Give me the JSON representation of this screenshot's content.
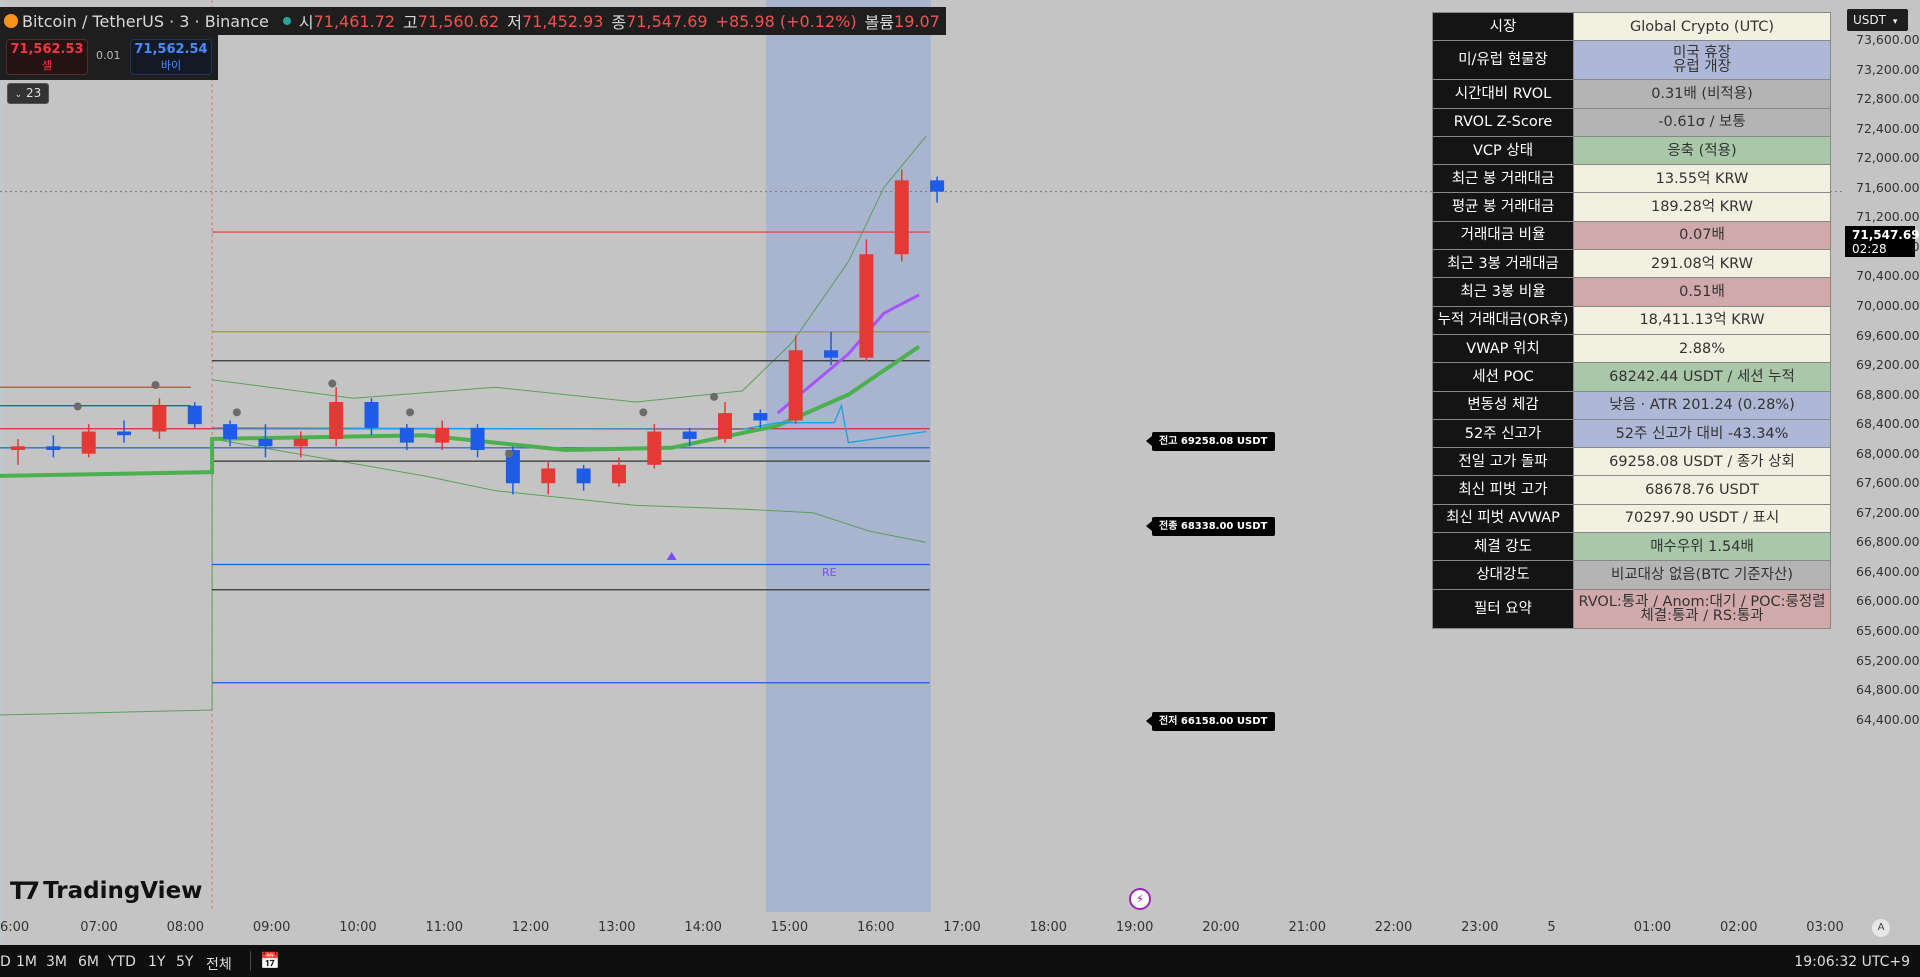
{
  "header": {
    "symbol": "Bitcoin / TetherUS · 3 · Binance",
    "open_label": "시",
    "open": "71,461.72",
    "high_label": "고",
    "high": "71,560.62",
    "low_label": "저",
    "low": "71,452.93",
    "close_label": "종",
    "close": "71,547.69",
    "change": "+85.98 (+0.12%)",
    "volume_label": "볼륨",
    "volume": "19.07"
  },
  "trade": {
    "sell_price": "71,562.53",
    "sell_label": "셀",
    "spread": "0.01",
    "buy_price": "71,562.54",
    "buy_label": "바이"
  },
  "indicator_count": "23",
  "currency": "USDT",
  "current_price": "71,547.69",
  "countdown": "02:28",
  "price_axis": [
    "73,600.00",
    "73,200.00",
    "72,800.00",
    "72,400.00",
    "72,000.00",
    "71,600.00",
    "71,200.00",
    "70,800.00",
    "70,400.00",
    "70,000.00",
    "69,600.00",
    "69,200.00",
    "68,800.00",
    "68,400.00",
    "68,000.00",
    "67,600.00",
    "67,200.00",
    "66,800.00",
    "66,400.00",
    "66,000.00",
    "65,600.00",
    "65,200.00",
    "64,800.00",
    "64,400.00"
  ],
  "time_axis": [
    "6:00",
    "07:00",
    "08:00",
    "09:00",
    "10:00",
    "11:00",
    "12:00",
    "13:00",
    "14:00",
    "15:00",
    "16:00",
    "17:00",
    "18:00",
    "19:00",
    "20:00",
    "21:00",
    "22:00",
    "23:00",
    "5",
    "01:00",
    "02:00",
    "03:00"
  ],
  "line_tags": {
    "prev_high": "전고 69258.08 USDT",
    "prev_close": "전종 68338.00 USDT",
    "prev_low": "전저 66158.00 USDT"
  },
  "re_label": "RE",
  "logo_text": "TradingView",
  "auto_label": "A",
  "bottom": {
    "ranges": [
      "D",
      "1M",
      "3M",
      "6M",
      "YTD",
      "1Y",
      "5Y",
      "전체"
    ],
    "clock": "19:06:32 UTC+9"
  },
  "info_table": [
    {
      "key": "시장",
      "value": "Global Crypto (UTC)",
      "color": "#f2f0e0"
    },
    {
      "key": "미/유럽 현물장",
      "value": "미국 휴장\n유럽 개장",
      "color": "#aeb8d6"
    },
    {
      "key": "시간대비 RVOL",
      "value": "0.31배 (비적용)",
      "color": "#b4b4b4"
    },
    {
      "key": "RVOL Z-Score",
      "value": "-0.61σ / 보통",
      "color": "#b4b4b4"
    },
    {
      "key": "VCP 상태",
      "value": "응축 (적용)",
      "color": "#a9c7a9"
    },
    {
      "key": "최근 봉 거래대금",
      "value": "13.55억 KRW",
      "color": "#f2f0e0"
    },
    {
      "key": "평균 봉 거래대금",
      "value": "189.28억 KRW",
      "color": "#f2f0e0"
    },
    {
      "key": "거래대금 비율",
      "value": "0.07배",
      "color": "#d2a9aa"
    },
    {
      "key": "최근 3봉 거래대금",
      "value": "291.08억 KRW",
      "color": "#f2f0e0"
    },
    {
      "key": "최근 3봉 비율",
      "value": "0.51배",
      "color": "#d2a9aa"
    },
    {
      "key": "누적 거래대금(OR후)",
      "value": "18,411.13억 KRW",
      "color": "#f2f0e0"
    },
    {
      "key": "VWAP 위치",
      "value": "2.88%",
      "color": "#f2f0e0"
    },
    {
      "key": "세션 POC",
      "value": "68242.44 USDT / 세션 누적",
      "color": "#a9c7a9"
    },
    {
      "key": "변동성 체감",
      "value": "낮음 · ATR 201.24 (0.28%)",
      "color": "#aeb8d6"
    },
    {
      "key": "52주 신고가",
      "value": "52주 신고가 대비 -43.34%",
      "color": "#aeb8d6"
    },
    {
      "key": "전일 고가 돌파",
      "value": "69258.08 USDT / 종가 상회",
      "color": "#f2f0e0"
    },
    {
      "key": "최신 피벗 고가",
      "value": "68678.76 USDT",
      "color": "#f2f0e0"
    },
    {
      "key": "최신 피벗 AVWAP",
      "value": "70297.90 USDT / 표시",
      "color": "#f2f0e0"
    },
    {
      "key": "체결 강도",
      "value": "매수우위 1.54배",
      "color": "#a9c7a9"
    },
    {
      "key": "상대강도",
      "value": "비교대상 없음(BTC 기준자산)",
      "color": "#b4b4b4"
    },
    {
      "key": "필터 요약",
      "value": "RVOL:통과 / Anom:대기 / POC:룽정렬\n체결:통과 / RS:통과",
      "color": "#d2a9aa"
    }
  ],
  "chart_data": {
    "type": "candlestick",
    "symbol": "BTCUSDT",
    "timeframe": "3",
    "ylim": [
      64200,
      73800
    ],
    "x_range": [
      "06:00",
      "03:00"
    ],
    "candles": [
      {
        "t": "06:00",
        "o": 68050,
        "h": 68200,
        "l": 67850,
        "c": 68100
      },
      {
        "t": "06:30",
        "o": 68100,
        "h": 68250,
        "l": 67950,
        "c": 68050
      },
      {
        "t": "07:00",
        "o": 68000,
        "h": 68400,
        "l": 67950,
        "c": 68300
      },
      {
        "t": "07:30",
        "o": 68300,
        "h": 68450,
        "l": 68150,
        "c": 68250
      },
      {
        "t": "08:00",
        "o": 68300,
        "h": 68750,
        "l": 68200,
        "c": 68650
      },
      {
        "t": "08:30",
        "o": 68650,
        "h": 68700,
        "l": 68350,
        "c": 68400
      },
      {
        "t": "09:00",
        "o": 68400,
        "h": 68450,
        "l": 68100,
        "c": 68200
      },
      {
        "t": "09:30",
        "o": 68200,
        "h": 68400,
        "l": 67950,
        "c": 68100
      },
      {
        "t": "10:00",
        "o": 68100,
        "h": 68300,
        "l": 67950,
        "c": 68200
      },
      {
        "t": "10:30",
        "o": 68200,
        "h": 68900,
        "l": 68100,
        "c": 68700
      },
      {
        "t": "11:00",
        "o": 68700,
        "h": 68750,
        "l": 68250,
        "c": 68350
      },
      {
        "t": "11:30",
        "o": 68350,
        "h": 68400,
        "l": 68050,
        "c": 68150
      },
      {
        "t": "12:00",
        "o": 68150,
        "h": 68450,
        "l": 68050,
        "c": 68350
      },
      {
        "t": "12:30",
        "o": 68350,
        "h": 68400,
        "l": 67950,
        "c": 68050
      },
      {
        "t": "13:00",
        "o": 68050,
        "h": 68100,
        "l": 67450,
        "c": 67600
      },
      {
        "t": "13:30",
        "o": 67600,
        "h": 67900,
        "l": 67450,
        "c": 67800
      },
      {
        "t": "14:00",
        "o": 67800,
        "h": 67850,
        "l": 67500,
        "c": 67600
      },
      {
        "t": "14:30",
        "o": 67600,
        "h": 67950,
        "l": 67550,
        "c": 67850
      },
      {
        "t": "15:00",
        "o": 67850,
        "h": 68400,
        "l": 67800,
        "c": 68300
      },
      {
        "t": "15:30",
        "o": 68300,
        "h": 68350,
        "l": 68100,
        "c": 68200
      },
      {
        "t": "16:00",
        "o": 68200,
        "h": 68700,
        "l": 68150,
        "c": 68550
      },
      {
        "t": "16:30",
        "o": 68550,
        "h": 68600,
        "l": 68350,
        "c": 68450
      },
      {
        "t": "17:00",
        "o": 68450,
        "h": 69600,
        "l": 68400,
        "c": 69400
      },
      {
        "t": "17:30",
        "o": 69400,
        "h": 69650,
        "l": 69200,
        "c": 69300
      },
      {
        "t": "18:00",
        "o": 69300,
        "h": 70900,
        "l": 69250,
        "c": 70700
      },
      {
        "t": "18:30",
        "o": 70700,
        "h": 71850,
        "l": 70600,
        "c": 71700
      },
      {
        "t": "19:00",
        "o": 71700,
        "h": 71750,
        "l": 71400,
        "c": 71547.69
      }
    ],
    "levels": [
      {
        "name": "prev-high",
        "value": 69258.08,
        "color": "#333333"
      },
      {
        "name": "prev-close",
        "value": 68338.0,
        "color": "#d32f2f"
      },
      {
        "name": "prev-low",
        "value": 66158.0,
        "color": "#333333"
      },
      {
        "name": "red-level",
        "value": 71000,
        "color": "#e53935"
      },
      {
        "name": "olive-level",
        "value": 69650,
        "color": "#9a9a1a"
      },
      {
        "name": "blue-level-upper",
        "value": 66500,
        "color": "#1e5be6"
      },
      {
        "name": "blue-level-lower",
        "value": 64900,
        "color": "#1e5be6"
      },
      {
        "name": "blue-level-mid",
        "value": 68080,
        "color": "#1e5be6"
      },
      {
        "name": "dark-level-low",
        "value": 67900,
        "color": "#333333"
      }
    ],
    "vwap_purple": [
      [
        17.0,
        68550
      ],
      [
        17.5,
        68950
      ],
      [
        18.0,
        69350
      ],
      [
        18.5,
        69900
      ],
      [
        19.0,
        70150
      ]
    ],
    "green_line": [
      [
        6.0,
        67700
      ],
      [
        9.0,
        67750
      ],
      [
        9.0,
        68200
      ],
      [
        12.0,
        68250
      ],
      [
        14.0,
        68050
      ],
      [
        15.5,
        68080
      ],
      [
        17.0,
        68380
      ],
      [
        18.0,
        68800
      ],
      [
        19.0,
        69450
      ]
    ],
    "session_highlight": [
      "16:50",
      "19:10"
    ]
  }
}
